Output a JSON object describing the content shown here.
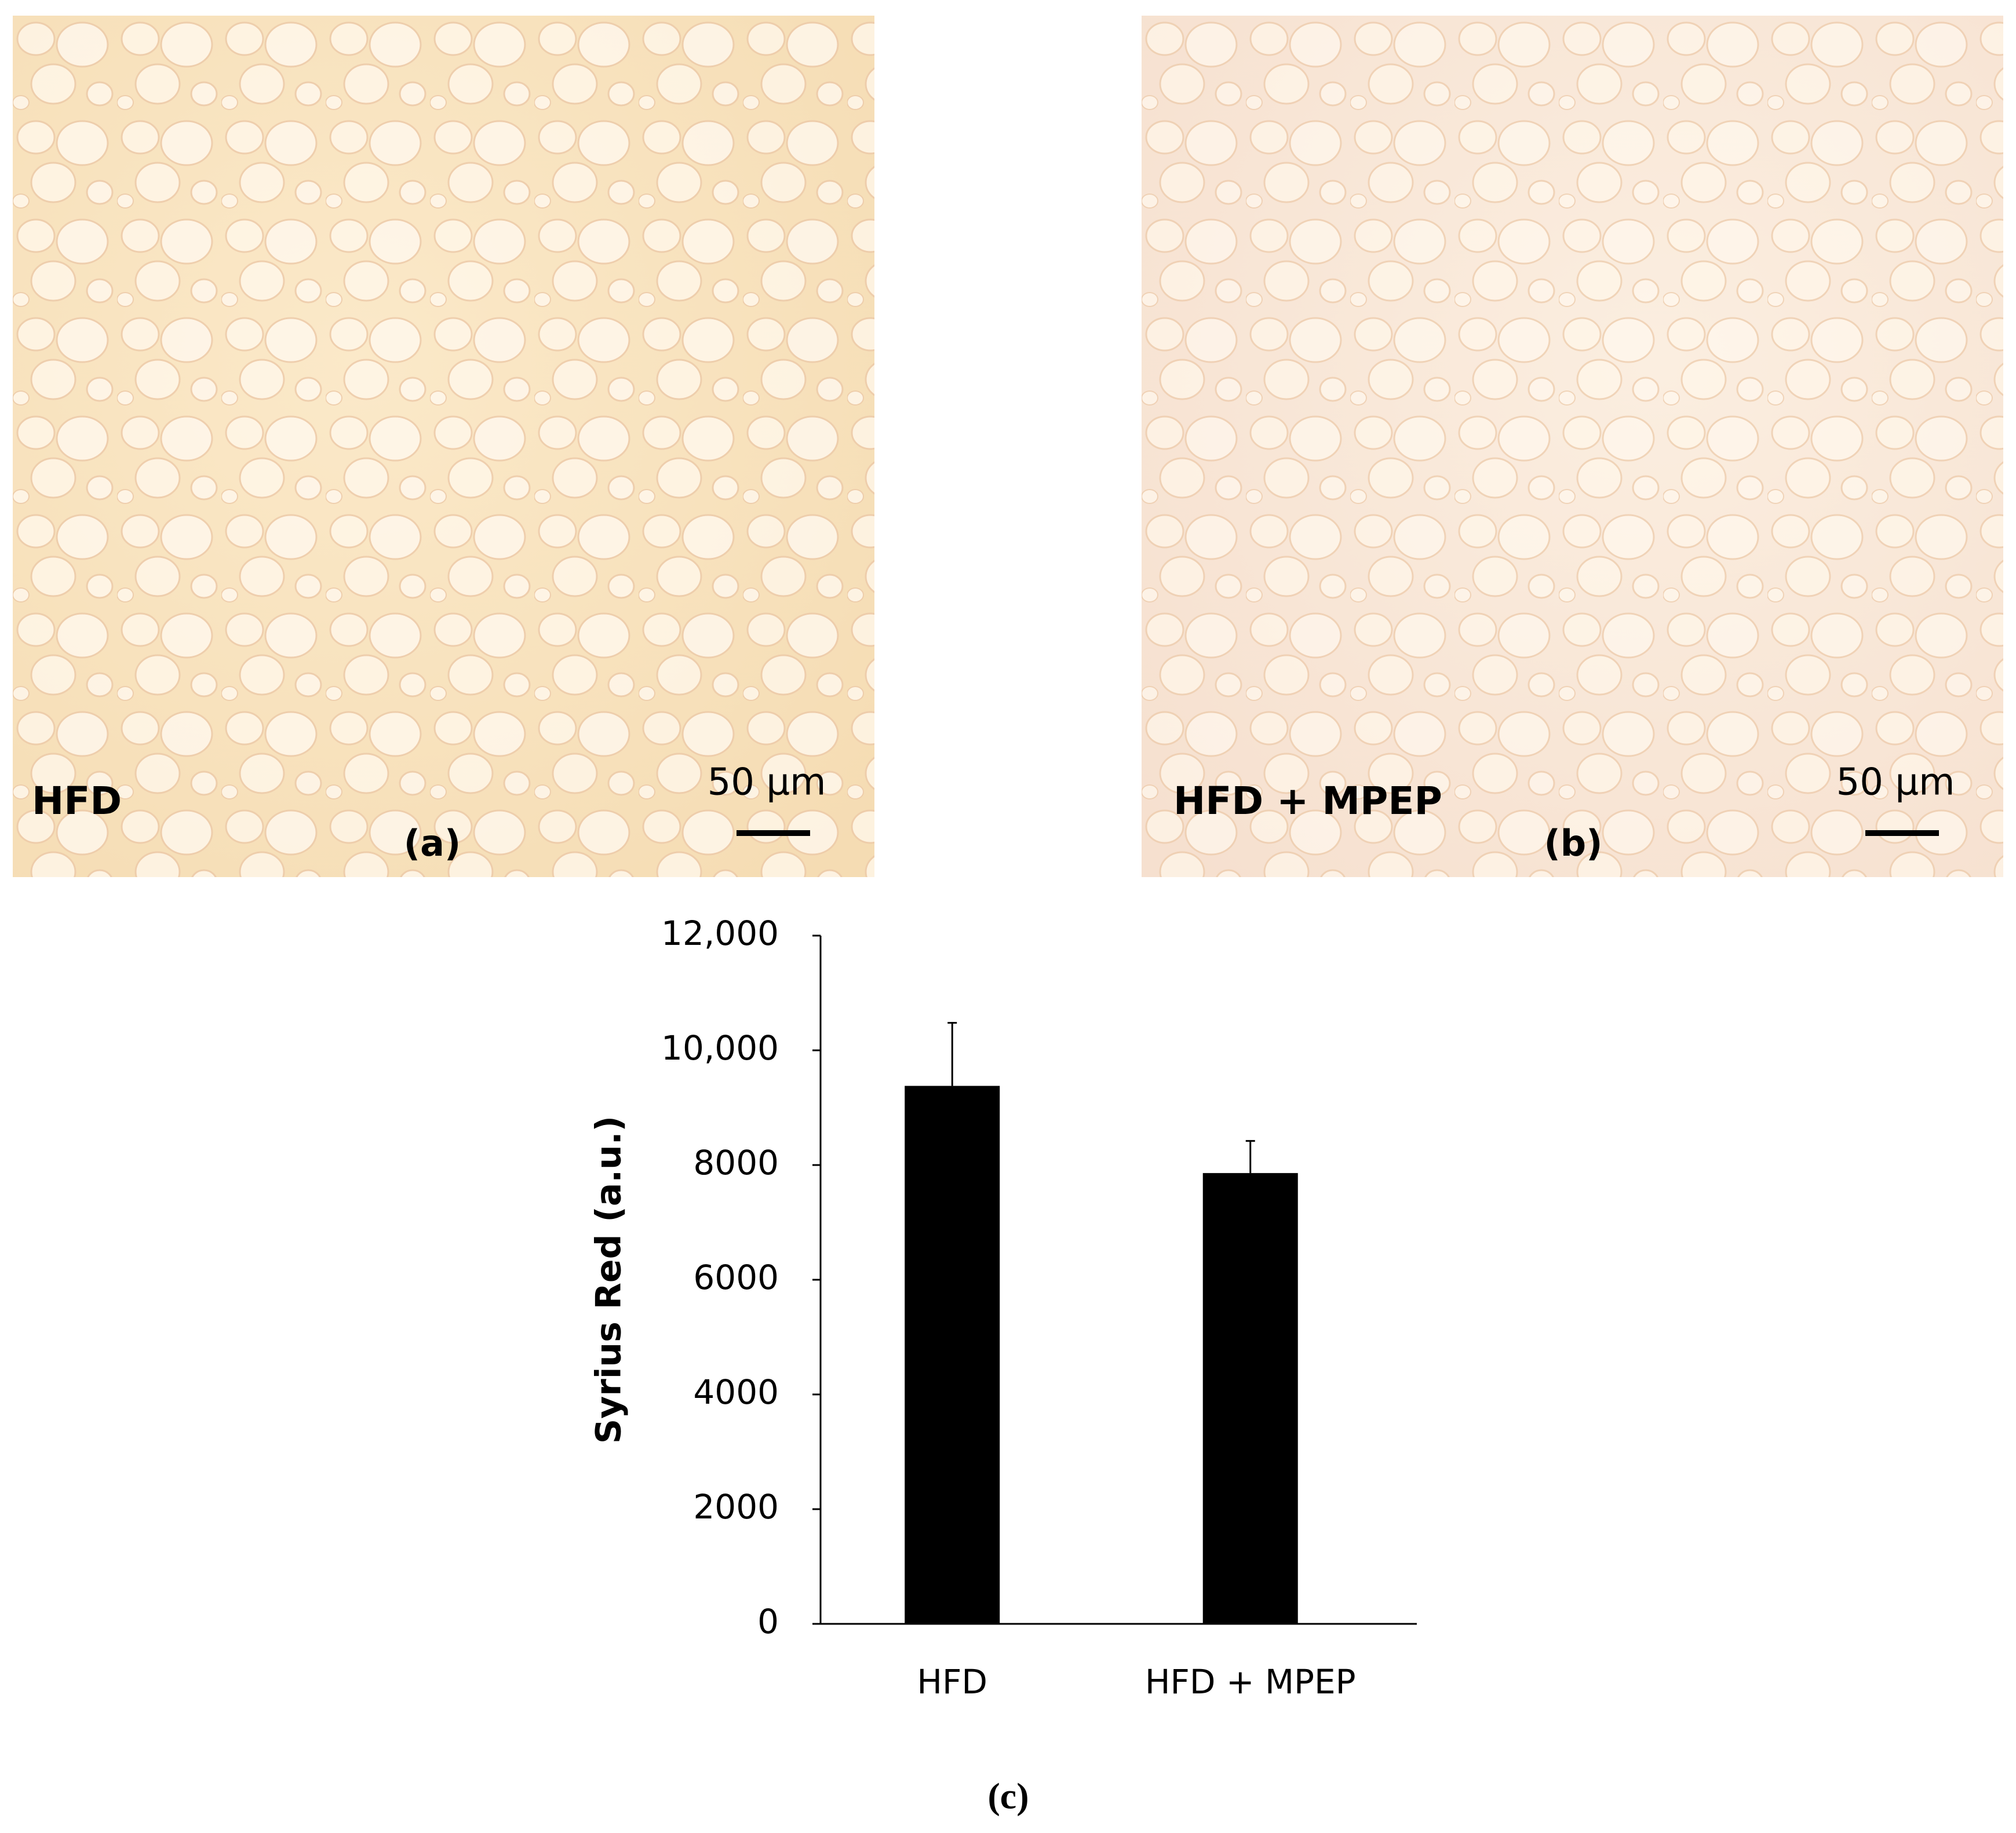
{
  "panels": [
    {
      "label": "HFD",
      "tag": "(a)",
      "scale": "50 µm"
    },
    {
      "label": "HFD + MPEP",
      "tag": "(b)",
      "scale": "50 µm"
    }
  ],
  "chart_data": {
    "type": "bar",
    "y_label": "Syrius Red (a.u.)",
    "caption": "(c)",
    "categories": [
      "HFD",
      "HFD + MPEP"
    ],
    "values": [
      9380,
      7860
    ],
    "errors": [
      1100,
      560
    ],
    "color": "#000000",
    "ylim": [
      0,
      12000
    ],
    "yticks": [
      0,
      2000,
      4000,
      6000,
      8000,
      {
        "value": 10000,
        "label": "10,000"
      },
      {
        "value": 12000,
        "label": "12,000"
      }
    ],
    "grid": false
  }
}
